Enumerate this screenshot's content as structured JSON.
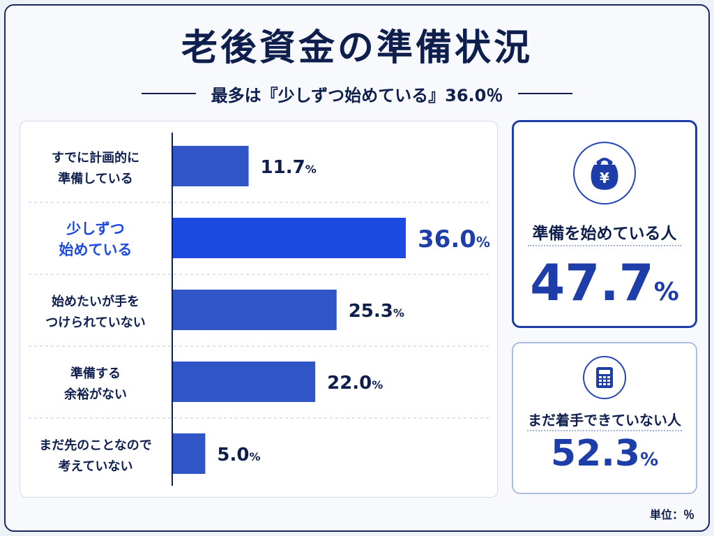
{
  "title": "老後資金の準備状況",
  "subtitle": "最多は『少しずつ始めている』36.0％",
  "unit_note": "単位：％",
  "colors": {
    "bar": "#2f55c6",
    "bar_highlight": "#1d4ae0",
    "text_dark": "#0e1f4d",
    "accent": "#1d3ea8"
  },
  "chart_data": {
    "type": "bar",
    "orientation": "horizontal",
    "categories": [
      [
        "すでに計画的に",
        "準備している"
      ],
      [
        "少しずつ",
        "始めている"
      ],
      [
        "始めたいが手を",
        "つけられていない"
      ],
      [
        "準備する",
        "余裕がない"
      ],
      [
        "まだ先のことなので",
        "考えていない"
      ]
    ],
    "values": [
      11.7,
      36.0,
      25.3,
      22.0,
      5.0
    ],
    "value_labels": [
      "11.7",
      "36.0",
      "25.3",
      "22.0",
      "5.0"
    ],
    "value_suffix": "%",
    "highlight_index": 1,
    "xlim": [
      0,
      36
    ],
    "grid": false,
    "legend": "none"
  },
  "summary_cards": [
    {
      "label": "準備を始めている人",
      "value": "47.7",
      "suffix": "%",
      "icon": "wallet-yen-icon"
    },
    {
      "label": "まだ着手できていない人",
      "value": "52.3",
      "suffix": "%",
      "icon": "calculator-icon"
    }
  ]
}
